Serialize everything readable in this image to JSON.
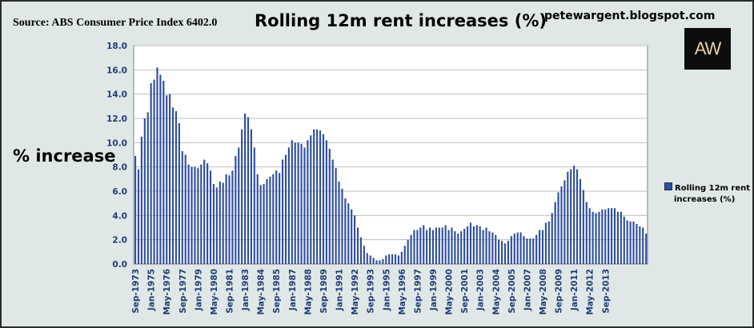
{
  "header": {
    "source": "Source: ABS Consumer Price Index 6402.0",
    "title": "Rolling 12m rent increases (%)",
    "blog": "petewargent.blogspot.com",
    "logo_text": "AW"
  },
  "chart_data": {
    "type": "bar",
    "ylabel": "% increase",
    "ylim": [
      0,
      18
    ],
    "yticks": [
      "0.0",
      "2.0",
      "4.0",
      "6.0",
      "8.0",
      "10.0",
      "12.0",
      "14.0",
      "16.0",
      "18.0"
    ],
    "grid": true,
    "legend_position": "right",
    "series": [
      {
        "name": "Rolling 12m rent increases (%)",
        "color": "#2f4f9e",
        "values": [
          8.9,
          7.8,
          10.5,
          12.0,
          12.5,
          14.9,
          15.2,
          16.2,
          15.6,
          15.1,
          13.9,
          14.0,
          12.9,
          12.6,
          11.6,
          9.3,
          9.0,
          8.2,
          8.0,
          8.0,
          7.9,
          8.2,
          8.6,
          8.3,
          7.7,
          6.6,
          6.3,
          6.8,
          6.7,
          7.4,
          7.3,
          7.7,
          8.9,
          9.6,
          11.1,
          12.4,
          12.1,
          11.1,
          9.6,
          7.4,
          6.5,
          6.6,
          7.0,
          7.2,
          7.4,
          7.7,
          7.5,
          8.6,
          9.0,
          9.6,
          10.2,
          10.0,
          10.0,
          9.9,
          9.6,
          10.2,
          10.6,
          11.1,
          11.1,
          11.0,
          10.7,
          10.2,
          9.5,
          8.6,
          7.9,
          6.8,
          6.2,
          5.4,
          5.0,
          4.5,
          4.0,
          3.0,
          2.2,
          1.5,
          0.9,
          0.7,
          0.5,
          0.3,
          0.3,
          0.4,
          0.7,
          0.8,
          0.8,
          0.8,
          0.7,
          1.0,
          1.5,
          2.0,
          2.4,
          2.8,
          2.8,
          3.0,
          3.2,
          2.8,
          3.0,
          2.8,
          3.0,
          3.0,
          3.0,
          3.2,
          2.8,
          3.0,
          2.7,
          2.5,
          2.7,
          2.9,
          3.1,
          3.4,
          3.1,
          3.2,
          3.1,
          2.8,
          3.0,
          2.7,
          2.6,
          2.4,
          2.0,
          1.9,
          1.7,
          1.9,
          2.3,
          2.5,
          2.6,
          2.6,
          2.3,
          2.1,
          2.1,
          2.1,
          2.4,
          2.8,
          2.8,
          3.4,
          3.5,
          4.2,
          5.1,
          5.9,
          6.4,
          6.9,
          7.6,
          7.8,
          8.1,
          7.8,
          7.0,
          6.1,
          5.1,
          4.6,
          4.3,
          4.2,
          4.3,
          4.5,
          4.5,
          4.6,
          4.6,
          4.6,
          4.3,
          4.3,
          3.9,
          3.6,
          3.5,
          3.5,
          3.3,
          3.1,
          3.0,
          2.5
        ]
      }
    ],
    "x_tick_labels": [
      "Sep-1973",
      "Jan-1975",
      "May-1976",
      "Sep-1977",
      "Jan-1979",
      "May-1980",
      "Sep-1981",
      "Jan-1983",
      "May-1984",
      "Sep-1985",
      "Jan-1987",
      "May-1988",
      "Sep-1989",
      "Jan-1991",
      "May-1992",
      "Sep-1993",
      "Jan-1995",
      "May-1996",
      "Sep-1997",
      "Jan-1999",
      "May-2000",
      "Sep-2001",
      "Jan-2003",
      "May-2004",
      "Sep-2005",
      "Jan-2007",
      "May-2008",
      "Sep-2009",
      "Jan-2011",
      "May-2012",
      "Sep-2013"
    ],
    "legend": [
      "Rolling 12m rent",
      "increases (%)"
    ]
  }
}
